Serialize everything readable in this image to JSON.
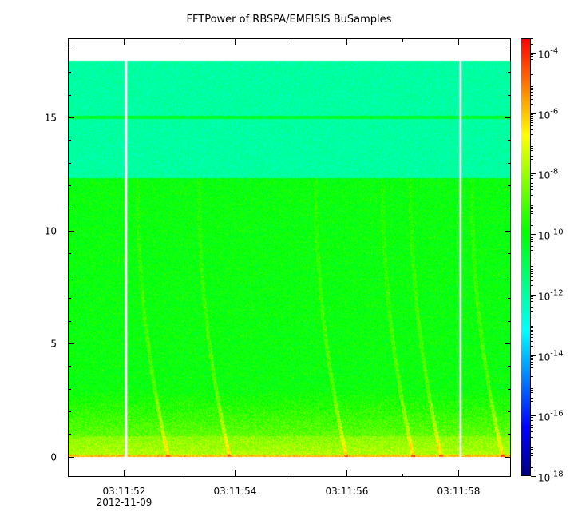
{
  "chart_data": {
    "type": "heatmap",
    "title": "FFTPower of RBSPA/EMFISIS  BuSamples",
    "xlabel": "",
    "ylabel": "",
    "x_ticks": [
      "03:11:52",
      "03:11:54",
      "03:11:56",
      "03:11:58"
    ],
    "x_tick_seconds": [
      52,
      54,
      56,
      58
    ],
    "x_date_label": "2012-11-09",
    "xlim": [
      "03:11:51.0",
      "03:11:58.95"
    ],
    "y_ticks": [
      0,
      5,
      10,
      15
    ],
    "ylim": [
      -0.9,
      18.5
    ],
    "data_top_y": 17.5,
    "data_gap_times_s": [
      52.05,
      58.05
    ],
    "bands": [
      {
        "y_from": 12.3,
        "y_to": 17.5,
        "power": "1e-12"
      },
      {
        "y_from": 3,
        "y_to": 12.3,
        "power": "1e-10"
      },
      {
        "y_from": 0,
        "y_to": 1.5,
        "power": "1e-8"
      }
    ],
    "horizontal_line_y": 15,
    "colorbar": {
      "scale": "log",
      "range": [
        "1e-18",
        "3e-4"
      ],
      "tick_base": "10",
      "tick_exponents": [
        "-4",
        "-6",
        "-8",
        "-10",
        "-12",
        "-14",
        "-16",
        "-18"
      ],
      "tick_values": [
        -4,
        -6,
        -8,
        -10,
        -12,
        -14,
        -16,
        -18
      ],
      "colormap": [
        "#00007f",
        "#0000ff",
        "#007fff",
        "#00ffff",
        "#00ff7f",
        "#00ff00",
        "#7fff00",
        "#ffff00",
        "#ff7f00",
        "#ff0000"
      ]
    }
  }
}
